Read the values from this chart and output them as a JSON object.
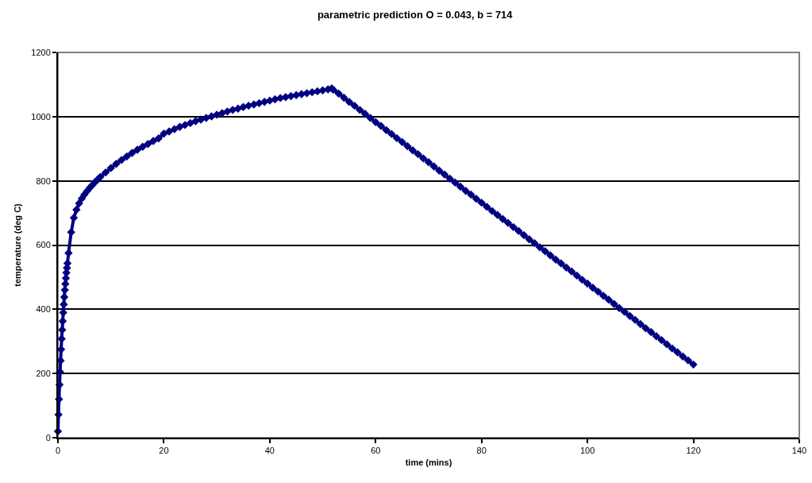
{
  "chart_data": {
    "type": "line",
    "title": "parametric prediction O = 0.043, b = 714",
    "xlabel": "time (mins)",
    "ylabel": "temperature (deg C)",
    "x": [
      0,
      0.1,
      0.2,
      0.3,
      0.4,
      0.5,
      0.6,
      0.7,
      0.8,
      0.9,
      1.0,
      1.1,
      1.2,
      1.3,
      1.4,
      1.5,
      1.6,
      1.7,
      1.8,
      2.0,
      2.5,
      3,
      3.5,
      4,
      4.5,
      5,
      5.5,
      6,
      6.5,
      7,
      7.5,
      8,
      9,
      10,
      11,
      12,
      13,
      14,
      15,
      16,
      17,
      18,
      19,
      20,
      21,
      22,
      23,
      24,
      25,
      26,
      27,
      28,
      29,
      30,
      31,
      32,
      33,
      34,
      35,
      36,
      37,
      38,
      39,
      40,
      41,
      42,
      43,
      44,
      45,
      46,
      47,
      48,
      49,
      50,
      51,
      51.7,
      52,
      53,
      54,
      55,
      56,
      57,
      58,
      59,
      60,
      61,
      62,
      63,
      64,
      65,
      66,
      67,
      68,
      69,
      70,
      71,
      72,
      73,
      74,
      75,
      76,
      77,
      78,
      79,
      80,
      81,
      82,
      83,
      84,
      85,
      86,
      87,
      88,
      89,
      90,
      91,
      92,
      93,
      94,
      95,
      96,
      97,
      98,
      99,
      100,
      101,
      102,
      103,
      104,
      105,
      106,
      107,
      108,
      109,
      110,
      111,
      112,
      113,
      114,
      115,
      116,
      117,
      118,
      119,
      120
    ],
    "values": [
      20,
      72,
      120,
      165,
      205,
      240,
      275,
      308,
      336,
      363,
      390,
      415,
      438,
      460,
      479,
      497,
      514,
      529,
      543,
      575,
      640,
      685,
      710,
      730,
      745,
      757,
      768,
      778,
      787,
      796,
      804,
      812,
      826,
      840,
      853,
      865,
      876,
      887,
      897,
      906,
      915,
      924,
      932,
      947,
      954,
      961,
      968,
      974,
      980,
      986,
      991,
      996,
      1001,
      1006,
      1011,
      1016,
      1021,
      1025,
      1030,
      1034,
      1038,
      1042,
      1046,
      1050,
      1054,
      1058,
      1061,
      1064,
      1067,
      1070,
      1073,
      1076,
      1079,
      1082,
      1085,
      1088,
      1084,
      1072,
      1059,
      1046,
      1034,
      1021,
      1009,
      996,
      983,
      971,
      958,
      946,
      933,
      921,
      908,
      895,
      883,
      870,
      858,
      845,
      832,
      820,
      807,
      795,
      782,
      769,
      757,
      744,
      732,
      719,
      706,
      694,
      681,
      669,
      656,
      644,
      631,
      618,
      606,
      593,
      581,
      568,
      555,
      543,
      530,
      518,
      505,
      492,
      480,
      467,
      455,
      442,
      430,
      417,
      404,
      392,
      379,
      367,
      354,
      341,
      329,
      316,
      304,
      291,
      278,
      266,
      253,
      241,
      228
    ],
    "color": "#000080",
    "marker": "diamond",
    "line_style": "solid",
    "xlim": [
      0,
      140
    ],
    "xticks": [
      0,
      20,
      40,
      60,
      80,
      100,
      120,
      140
    ],
    "ylim": [
      0,
      1200
    ],
    "yticks": [
      0,
      200,
      400,
      600,
      800,
      1000,
      1200
    ],
    "grid": "y"
  }
}
